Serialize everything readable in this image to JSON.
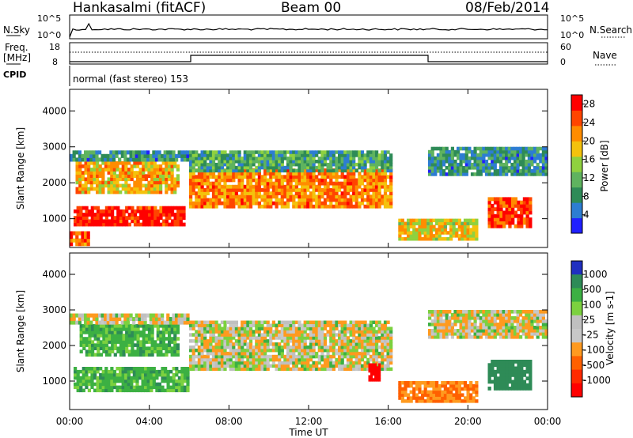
{
  "header": {
    "station": "Hankasalmi (fitACF)",
    "beam": "Beam 00",
    "date": "08/Feb/2014"
  },
  "noise_panel": {
    "left_label": "N.Sky",
    "left_ticks": [
      "10^5",
      "10^0"
    ],
    "right_label": "N.Search",
    "right_ticks": [
      "10^5",
      "10^0"
    ]
  },
  "freq_panel": {
    "left_label_line1": "Freq.",
    "left_label_line2": "[MHz]",
    "left_ticks": [
      "18",
      "8"
    ],
    "right_label": "Nave",
    "right_ticks": [
      "60",
      "0"
    ]
  },
  "cpid": {
    "label": "CPID",
    "text": "normal (fast stereo) 153"
  },
  "colors": {
    "power_scale": [
      "#2020ff",
      "#2d7dd2",
      "#2e8b57",
      "#5fb35f",
      "#8fd13f",
      "#f4c20d",
      "#ff8c00",
      "#ff4500",
      "#ff0000"
    ],
    "velocity_scale": [
      "#2030c0",
      "#2e8b57",
      "#3cb043",
      "#7cd13f",
      "#c0c0c0",
      "#c8c8c8",
      "#ff9a1f",
      "#ff6000",
      "#ff2a00",
      "#ff0000"
    ]
  },
  "chart_data": [
    {
      "type": "heatmap",
      "name": "power",
      "ylabel": "Slant Range [km]",
      "xlabel": "Time UT",
      "x_ticks": [
        "00:00",
        "04:00",
        "08:00",
        "12:00",
        "16:00",
        "20:00",
        "00:00"
      ],
      "y_ticks": [
        "1000",
        "2000",
        "3000",
        "4000"
      ],
      "ylim": [
        200,
        4600
      ],
      "xlim_hours": [
        0,
        24
      ],
      "colorbar": {
        "label": "Power [dB]",
        "ticks": [
          "4",
          "8",
          "12",
          "16",
          "20",
          "24",
          "28"
        ],
        "range": [
          0,
          30
        ]
      },
      "regions": [
        {
          "t0": 0.2,
          "t1": 5.8,
          "r0": 800,
          "r1": 1350,
          "level": 28
        },
        {
          "t0": 0.3,
          "t1": 5.5,
          "r0": 1700,
          "r1": 2600,
          "level": 20
        },
        {
          "t0": 0.0,
          "t1": 6.0,
          "r0": 2600,
          "r1": 2900,
          "level": 8
        },
        {
          "t0": 6.0,
          "t1": 16.2,
          "r0": 1300,
          "r1": 2400,
          "level": 22
        },
        {
          "t0": 6.0,
          "t1": 16.2,
          "r0": 2300,
          "r1": 2900,
          "level": 10
        },
        {
          "t0": 16.5,
          "t1": 20.5,
          "r0": 400,
          "r1": 1000,
          "level": 18
        },
        {
          "t0": 18.0,
          "t1": 24.0,
          "r0": 2200,
          "r1": 3000,
          "level": 8
        },
        {
          "t0": 21.0,
          "t1": 23.2,
          "r0": 750,
          "r1": 1600,
          "level": 26
        },
        {
          "t0": 0.0,
          "t1": 1.0,
          "r0": 250,
          "r1": 650,
          "level": 24
        }
      ]
    },
    {
      "type": "heatmap",
      "name": "velocity",
      "ylabel": "Slant Range [km]",
      "xlabel": "Time UT",
      "x_ticks": [
        "00:00",
        "04:00",
        "08:00",
        "12:00",
        "16:00",
        "20:00",
        "00:00"
      ],
      "y_ticks": [
        "1000",
        "2000",
        "3000",
        "4000"
      ],
      "ylim": [
        200,
        4600
      ],
      "xlim_hours": [
        0,
        24
      ],
      "colorbar": {
        "label": "Velocity [m s-1]",
        "ticks": [
          "1000",
          "500",
          "100",
          "25",
          "-25",
          "-100",
          "-500",
          "-1000"
        ]
      },
      "regions": [
        {
          "t0": 0.2,
          "t1": 6.0,
          "r0": 700,
          "r1": 1400,
          "level": 100
        },
        {
          "t0": 0.5,
          "t1": 5.5,
          "r0": 1700,
          "r1": 2600,
          "level": 100
        },
        {
          "t0": 0.0,
          "t1": 6.0,
          "r0": 2600,
          "r1": 2900,
          "level": 0
        },
        {
          "t0": 6.0,
          "t1": 16.2,
          "r0": 1300,
          "r1": 2700,
          "level": 0
        },
        {
          "t0": 16.5,
          "t1": 20.5,
          "r0": 400,
          "r1": 1000,
          "level": -100
        },
        {
          "t0": 18.0,
          "t1": 24.0,
          "r0": 2200,
          "r1": 3000,
          "level": 0
        },
        {
          "t0": 21.0,
          "t1": 23.2,
          "r0": 750,
          "r1": 1600,
          "level": 300
        },
        {
          "t0": 15.0,
          "t1": 15.6,
          "r0": 1000,
          "r1": 1500,
          "level": -1000
        }
      ]
    }
  ]
}
